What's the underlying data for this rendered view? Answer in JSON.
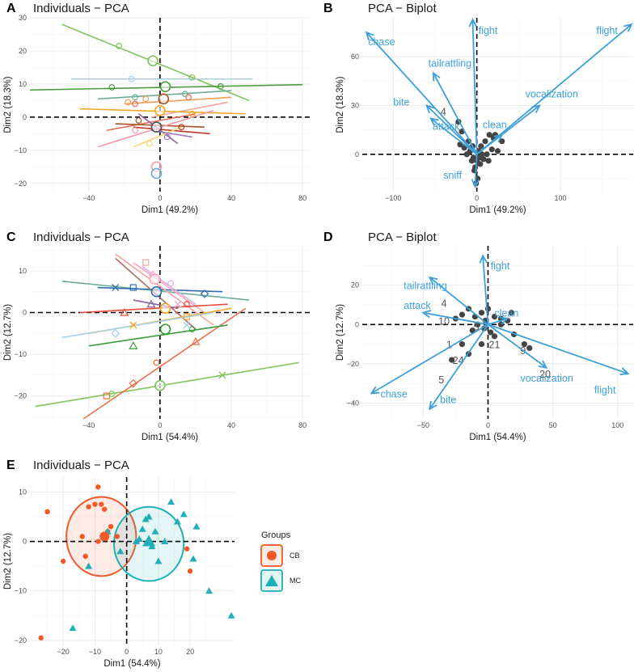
{
  "figure": {
    "legend": {
      "title": "Groups",
      "items": [
        {
          "label": "CB",
          "color": "#F05A28",
          "shape": "circle"
        },
        {
          "label": "MC",
          "color": "#1FAFB8",
          "shape": "triangle"
        }
      ]
    }
  },
  "chart_data": [
    {
      "id": "A",
      "type": "scatter",
      "label": "A",
      "title": "Individuals − PCA",
      "xlabel": "Dim1 (49.2%)",
      "ylabel": "Dim2 (18.3%)",
      "xlim": [
        -73,
        84
      ],
      "ylim": [
        -22.5,
        30
      ],
      "xticks": [
        -40,
        0,
        40,
        80
      ],
      "yticks": [
        -20,
        -10,
        0,
        10,
        20,
        30
      ],
      "segments": [
        {
          "color": "#7FC45A",
          "x1": -55,
          "y1": 28,
          "x2": 50,
          "y2": 5
        },
        {
          "color": "#4B9E3E",
          "x1": -73,
          "y1": 8.2,
          "x2": 80,
          "y2": 9.8
        },
        {
          "color": "#A8CFE8",
          "x1": -50,
          "y1": 11.5,
          "x2": 52,
          "y2": 11.5
        },
        {
          "color": "#6BAE98",
          "x1": -35,
          "y1": 5.5,
          "x2": 40,
          "y2": 8
        },
        {
          "color": "#F4A05A",
          "x1": -20,
          "y1": 4,
          "x2": 40,
          "y2": 6
        },
        {
          "color": "#F4A5A0",
          "x1": -5,
          "y1": 0,
          "x2": 38,
          "y2": 4.5
        },
        {
          "color": "#E86B5A",
          "x1": -30,
          "y1": -4,
          "x2": 20,
          "y2": 1
        },
        {
          "color": "#F5A623",
          "x1": -45,
          "y1": 2.5,
          "x2": 48,
          "y2": 1
        },
        {
          "color": "#A65628",
          "x1": -25,
          "y1": -2,
          "x2": 25,
          "y2": -3
        },
        {
          "color": "#C0392B",
          "x1": -15,
          "y1": -3,
          "x2": 28,
          "y2": -5
        },
        {
          "color": "#8E5EA2",
          "x1": -12,
          "y1": 1,
          "x2": 10,
          "y2": -8
        },
        {
          "color": "#F49AA8",
          "x1": -35,
          "y1": -9,
          "x2": 30,
          "y2": 2
        },
        {
          "color": "#F7D774",
          "x1": -15,
          "y1": -9,
          "x2": 12,
          "y2": -3
        },
        {
          "color": "#9C7BC0",
          "x1": -5,
          "y1": -4,
          "x2": 18,
          "y2": -6
        }
      ],
      "points": [
        {
          "x": -23,
          "y": 21.5,
          "color": "#7FC45A"
        },
        {
          "x": -16,
          "y": 11.5,
          "color": "#A8CFE8"
        },
        {
          "x": 18,
          "y": 12,
          "color": "#7FC45A"
        },
        {
          "x": 34,
          "y": 9.3,
          "color": "#4B9E3E"
        },
        {
          "x": -27,
          "y": 9,
          "color": "#4B9E3E"
        },
        {
          "x": -14,
          "y": 6,
          "color": "#6BAE98"
        },
        {
          "x": 14,
          "y": 7,
          "color": "#6BAE98"
        },
        {
          "x": -18,
          "y": 4.5,
          "color": "#F4A05A"
        },
        {
          "x": 16,
          "y": 6,
          "color": "#E86B5A"
        },
        {
          "x": -8,
          "y": 5.5,
          "color": "#F4A05A"
        },
        {
          "x": -14,
          "y": 4,
          "color": "#E86B5A"
        },
        {
          "x": 18,
          "y": 1,
          "color": "#F5A623"
        },
        {
          "x": -12,
          "y": -1,
          "color": "#A65628"
        },
        {
          "x": -14,
          "y": -4,
          "color": "#F49AA8"
        },
        {
          "x": 12,
          "y": -3,
          "color": "#C0392B"
        },
        {
          "x": -6,
          "y": -8,
          "color": "#F7D774"
        },
        {
          "x": 4,
          "y": -6,
          "color": "#9C7BC0"
        }
      ],
      "centroids": [
        {
          "x": -4,
          "y": 17,
          "color": "#7FC45A"
        },
        {
          "x": 3,
          "y": 9.2,
          "color": "#4B9E3E"
        },
        {
          "x": 2,
          "y": 5.5,
          "color": "#A65628"
        },
        {
          "x": 0,
          "y": 2,
          "color": "#F5A623"
        },
        {
          "x": -2,
          "y": -3,
          "color": "#555555"
        },
        {
          "x": -2,
          "y": -15,
          "color": "#F49AA8"
        },
        {
          "x": -2,
          "y": -17,
          "color": "#6FA8DC"
        }
      ]
    },
    {
      "id": "B",
      "type": "biplot",
      "label": "B",
      "title": "PCA − Biplot",
      "xlabel": "Dim1 (49.2%)",
      "ylabel": "Dim2 (18.3%)",
      "xlim": [
        -137,
        187
      ],
      "ylim": [
        -23,
        84
      ],
      "xticks": [
        -100,
        0,
        100
      ],
      "yticks": [
        0,
        30,
        60
      ],
      "arrows": [
        {
          "label": "chase",
          "x": -132,
          "y": 75,
          "lx": -130,
          "ly": 67
        },
        {
          "label": "fight",
          "x": -5,
          "y": 83,
          "lx": 2,
          "ly": 74
        },
        {
          "label": "flight",
          "x": 185,
          "y": 80,
          "lx": 143,
          "ly": 74
        },
        {
          "label": "tailrattling",
          "x": -52,
          "y": 50,
          "lx": -58,
          "ly": 54
        },
        {
          "label": "vocalization",
          "x": 75,
          "y": 30,
          "lx": 58,
          "ly": 35
        },
        {
          "label": "bite",
          "x": -60,
          "y": 30,
          "lx": -100,
          "ly": 30
        },
        {
          "label": "attack",
          "x": -55,
          "y": 22,
          "lx": -53,
          "ly": 15
        },
        {
          "label": "clean",
          "x": 30,
          "y": 12,
          "lx": 7,
          "ly": 16
        },
        {
          "label": "sniff",
          "x": -2,
          "y": -20,
          "lx": -40,
          "ly": -15
        }
      ],
      "points": [
        [
          -22,
          20
        ],
        [
          -18,
          14
        ],
        [
          -10,
          8
        ],
        [
          -5,
          5
        ],
        [
          -8,
          2
        ],
        [
          2,
          2
        ],
        [
          5,
          5
        ],
        [
          10,
          8
        ],
        [
          15,
          12
        ],
        [
          20,
          10
        ],
        [
          18,
          3
        ],
        [
          25,
          2
        ],
        [
          -12,
          0
        ],
        [
          -4,
          -2
        ],
        [
          0,
          -4
        ],
        [
          -2,
          -8
        ],
        [
          4,
          -6
        ],
        [
          1,
          -15
        ],
        [
          -3,
          -10
        ],
        [
          8,
          -3
        ],
        [
          12,
          0
        ],
        [
          -15,
          4
        ],
        [
          30,
          8
        ],
        [
          -6,
          -4
        ],
        [
          6,
          0
        ],
        [
          3,
          -2
        ],
        [
          -1,
          -18
        ],
        [
          14,
          -4
        ],
        [
          22,
          12
        ],
        [
          -20,
          6
        ]
      ],
      "labels": [
        {
          "text": "4",
          "x": -40,
          "y": 24
        }
      ]
    },
    {
      "id": "C",
      "type": "scatter",
      "label": "C",
      "title": "Individuals − PCA",
      "xlabel": "Dim1 (54.4%)",
      "ylabel": "Dim2 (12.7%)",
      "xlim": [
        -73,
        84
      ],
      "ylim": [
        -25.5,
        16
      ],
      "xticks": [
        -40,
        0,
        40,
        80
      ],
      "yticks": [
        -20,
        -10,
        0,
        10
      ],
      "segments": [
        {
          "color": "#7FC45A",
          "x1": -70,
          "y1": -22.5,
          "x2": 78,
          "y2": -12
        },
        {
          "color": "#E8734A",
          "x1": -43,
          "y1": -25.5,
          "x2": 48,
          "y2": 1
        },
        {
          "color": "#6BAE98",
          "x1": -55,
          "y1": 7.5,
          "x2": 50,
          "y2": 3
        },
        {
          "color": "#2E6DB4",
          "x1": -35,
          "y1": 6,
          "x2": 35,
          "y2": 5
        },
        {
          "color": "#F4A5A0",
          "x1": -25,
          "y1": 14,
          "x2": 30,
          "y2": -3
        },
        {
          "color": "#B36A6A",
          "x1": -25,
          "y1": 13,
          "x2": 20,
          "y2": -4
        },
        {
          "color": "#F7A6C0",
          "x1": -15,
          "y1": 12,
          "x2": 25,
          "y2": 0
        },
        {
          "color": "#D8B4E2",
          "x1": -10,
          "y1": 11,
          "x2": 20,
          "y2": 2
        },
        {
          "color": "#E84A3A",
          "x1": -45,
          "y1": 0,
          "x2": 38,
          "y2": 2
        },
        {
          "color": "#F5A623",
          "x1": -40,
          "y1": -5,
          "x2": 40,
          "y2": 1
        },
        {
          "color": "#A8CFE8",
          "x1": -55,
          "y1": -6,
          "x2": 30,
          "y2": 0
        },
        {
          "color": "#3A9A3A",
          "x1": -40,
          "y1": -8,
          "x2": 38,
          "y2": -3
        },
        {
          "color": "#8E5EA2",
          "x1": -15,
          "y1": 3,
          "x2": 10,
          "y2": 1
        }
      ],
      "points": [
        {
          "x": -27,
          "y": -19.5,
          "color": "#7FC45A"
        },
        {
          "x": 35,
          "y": -15,
          "color": "#7FC45A"
        },
        {
          "x": -30,
          "y": -20,
          "color": "#E8734A"
        },
        {
          "x": -15,
          "y": -17,
          "color": "#E8734A"
        },
        {
          "x": 20,
          "y": -7,
          "color": "#E8734A"
        },
        {
          "x": -2,
          "y": -12,
          "color": "#E8734A"
        },
        {
          "x": -25,
          "y": 6,
          "color": "#2E6DB4"
        },
        {
          "x": -15,
          "y": 6,
          "color": "#2E6DB4"
        },
        {
          "x": 25,
          "y": 4.5,
          "color": "#2E6DB4"
        },
        {
          "x": -20,
          "y": 0,
          "color": "#E84A3A"
        },
        {
          "x": 15,
          "y": 2,
          "color": "#E84A3A"
        },
        {
          "x": -15,
          "y": -3,
          "color": "#F5A623"
        },
        {
          "x": 15,
          "y": -1,
          "color": "#F5A623"
        },
        {
          "x": -25,
          "y": -5,
          "color": "#A8CFE8"
        },
        {
          "x": -15,
          "y": -8,
          "color": "#3A9A3A"
        },
        {
          "x": 18,
          "y": -4,
          "color": "#3A9A3A"
        },
        {
          "x": 15,
          "y": -3,
          "color": "#A8CFE8"
        },
        {
          "x": -8,
          "y": 12,
          "color": "#F4A5A0"
        },
        {
          "x": -4,
          "y": 9,
          "color": "#F7A6C0"
        },
        {
          "x": -5,
          "y": 2,
          "color": "#8E5EA2"
        },
        {
          "x": 6,
          "y": 7,
          "color": "#D8B4E2"
        },
        {
          "x": 10,
          "y": 2,
          "color": "#D8B4E2"
        }
      ],
      "centroids": [
        {
          "x": 0,
          "y": -17.5,
          "color": "#7FC45A"
        },
        {
          "x": 3,
          "y": -4,
          "color": "#3A9A3A"
        },
        {
          "x": 3,
          "y": 1,
          "color": "#F5A623"
        },
        {
          "x": -2,
          "y": 5,
          "color": "#2E6DB4"
        },
        {
          "x": -3,
          "y": 8,
          "color": "#F7A6C0"
        }
      ]
    },
    {
      "id": "D",
      "type": "biplot",
      "label": "D",
      "title": "PCA − Biplot",
      "xlabel": "Dim1 (54.4%)",
      "ylabel": "Dim2 (12.7%)",
      "xlim": [
        -97,
        112
      ],
      "ylim": [
        -48,
        40
      ],
      "xticks": [
        -50,
        0,
        50,
        100
      ],
      "yticks": [
        -40,
        -20,
        0,
        20
      ],
      "arrows": [
        {
          "label": "fight",
          "x": -4,
          "y": 35,
          "lx": 2,
          "ly": 28
        },
        {
          "label": "tailrattling",
          "x": -45,
          "y": 24,
          "lx": -65,
          "ly": 18
        },
        {
          "label": "attack",
          "x": -50,
          "y": 6,
          "lx": -65,
          "ly": 8
        },
        {
          "label": "clean",
          "x": 15,
          "y": 3,
          "lx": 5,
          "ly": 4
        },
        {
          "label": "chase",
          "x": -90,
          "y": -35,
          "lx": -83,
          "ly": -37
        },
        {
          "label": "bite",
          "x": -45,
          "y": -43,
          "lx": -37,
          "ly": -40
        },
        {
          "label": "vocalization",
          "x": 45,
          "y": -22,
          "lx": 25,
          "ly": -29
        },
        {
          "label": "flight",
          "x": 108,
          "y": -25,
          "lx": 82,
          "ly": -35
        }
      ],
      "points": [
        [
          -20,
          5
        ],
        [
          -15,
          8
        ],
        [
          -10,
          4
        ],
        [
          -5,
          6
        ],
        [
          0,
          8
        ],
        [
          5,
          4
        ],
        [
          10,
          3
        ],
        [
          15,
          2
        ],
        [
          -8,
          0
        ],
        [
          -3,
          -2
        ],
        [
          2,
          -4
        ],
        [
          -12,
          -3
        ],
        [
          5,
          -6
        ],
        [
          -25,
          3
        ],
        [
          -20,
          -10
        ],
        [
          -15,
          -15
        ],
        [
          -28,
          -18
        ],
        [
          20,
          -5
        ],
        [
          28,
          -10
        ],
        [
          32,
          -12
        ],
        [
          -5,
          -10
        ],
        [
          10,
          0
        ],
        [
          -2,
          2
        ],
        [
          18,
          6
        ]
      ],
      "labels": [
        {
          "text": "4",
          "x": -34,
          "y": 9
        },
        {
          "text": "10",
          "x": -34,
          "y": 0
        },
        {
          "text": "5",
          "x": -9,
          "y": -3
        },
        {
          "text": "21",
          "x": 5,
          "y": -12
        },
        {
          "text": "1",
          "x": -30,
          "y": -12
        },
        {
          "text": "24",
          "x": -23,
          "y": -20
        },
        {
          "text": "5",
          "x": -36,
          "y": -30
        },
        {
          "text": "9",
          "x": 27,
          "y": -15
        },
        {
          "text": "20",
          "x": 44,
          "y": -27
        }
      ]
    },
    {
      "id": "E",
      "type": "scatter",
      "label": "E",
      "title": "Individuals − PCA",
      "xlabel": "Dim1 (54.4%)",
      "ylabel": "Dim2 (12.7%)",
      "xlim": [
        -30.5,
        34
      ],
      "ylim": [
        -21,
        13
      ],
      "xticks": [
        -20,
        -10,
        0,
        10,
        20
      ],
      "yticks": [
        -20,
        -10,
        0,
        10
      ],
      "ellipses": [
        {
          "group": "CB",
          "cx": -8,
          "cy": 1,
          "rx": 11,
          "ry": 8
        },
        {
          "group": "MC",
          "cx": 7,
          "cy": -0.5,
          "rx": 11,
          "ry": 7.5
        }
      ],
      "groups": [
        {
          "name": "CB",
          "points": [
            [
              -25,
              6
            ],
            [
              -20,
              -4
            ],
            [
              -14,
              1
            ],
            [
              -13,
              -3
            ],
            [
              -12,
              7
            ],
            [
              -10,
              7.5
            ],
            [
              -9,
              11
            ],
            [
              -8,
              7.5
            ],
            [
              -7,
              6.5
            ],
            [
              -5,
              3
            ],
            [
              -3,
              1
            ],
            [
              -27,
              -19.5
            ],
            [
              -9,
              0
            ],
            [
              -6,
              2
            ],
            [
              20,
              -6
            ],
            [
              19,
              -1.5
            ]
          ]
        },
        {
          "name": "MC",
          "points": [
            [
              -17,
              -17.5
            ],
            [
              -12,
              -5
            ],
            [
              -6,
              2
            ],
            [
              -2,
              -2
            ],
            [
              3,
              0
            ],
            [
              5,
              2.5
            ],
            [
              6,
              4.5
            ],
            [
              7,
              5
            ],
            [
              9,
              2
            ],
            [
              10,
              -4
            ],
            [
              12,
              0
            ],
            [
              14,
              8
            ],
            [
              16,
              4
            ],
            [
              18,
              5.5
            ],
            [
              21,
              -3.5
            ],
            [
              22,
              3
            ],
            [
              26,
              -10
            ],
            [
              33,
              -15
            ],
            [
              4,
              0.5
            ],
            [
              8,
              -1
            ]
          ]
        }
      ],
      "centroids": [
        {
          "group": "CB",
          "x": -7,
          "y": 1
        },
        {
          "group": "MC",
          "x": 7,
          "y": 0
        }
      ]
    }
  ]
}
